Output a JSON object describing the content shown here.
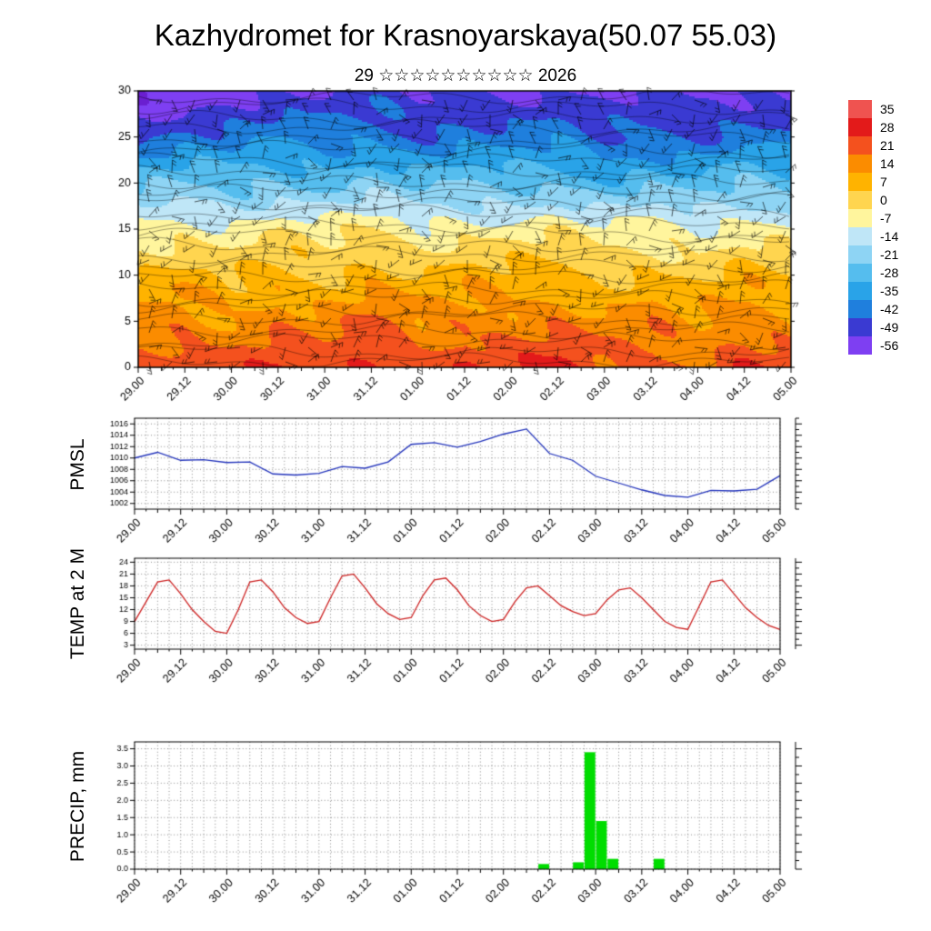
{
  "title": "Kazhydromet for Krasnoyarskaya(50.07 55.03)",
  "subtitle": "29 ☆☆☆☆☆☆☆☆☆☆ 2026",
  "panel_labels": {
    "pmsl": "PMSL",
    "temp": "TEMP at 2 M",
    "precip": "PRECIP, mm"
  },
  "time_axis": {
    "labels": [
      "29.00",
      "29.12",
      "30.00",
      "30.12",
      "31.00",
      "31.12",
      "01.00",
      "01.12",
      "02.00",
      "02.12",
      "03.00",
      "03.12",
      "04.00",
      "04.12",
      "05.00"
    ],
    "label_step_hours": 12,
    "minor_step_hours": 3,
    "total_hours": 168
  },
  "colorbar": {
    "labels": [
      "35",
      "28",
      "21",
      "14",
      "7",
      "0",
      "-7",
      "-14",
      "-21",
      "-28",
      "-35",
      "-42",
      "-49",
      "-56"
    ],
    "levels": [
      35,
      28,
      21,
      14,
      7,
      0,
      -7,
      -14,
      -21,
      -28,
      -35,
      -42,
      -49,
      -56
    ],
    "colors": [
      "#ef5350",
      "#e31a1a",
      "#f4511e",
      "#fb8c00",
      "#ffb300",
      "#ffd54f",
      "#fff59d",
      "#bfe6f7",
      "#8ed4f4",
      "#55bdee",
      "#29a3e8",
      "#1f7fdd",
      "#3a3ad2",
      "#7e3ff2"
    ],
    "below_color": "#6a1fd0"
  },
  "chart_data": [
    {
      "type": "heatmap",
      "name": "temperature-height-cross-section",
      "title": "",
      "ylabel": "",
      "y_ticks": [
        0,
        5,
        10,
        15,
        20,
        25,
        30
      ],
      "y_range": [
        0,
        30
      ],
      "overlay": "wind-barbs-and-streamlines",
      "grid": {
        "heights": [
          0,
          5,
          10,
          15,
          20,
          25,
          30
        ],
        "time_cols": [
          "29.00",
          "29.12",
          "30.00",
          "30.12",
          "31.00",
          "31.12",
          "01.00",
          "01.12",
          "02.00",
          "02.12",
          "03.00",
          "03.12",
          "04.00",
          "04.12",
          "05.00"
        ],
        "values": [
          [
            24,
            27,
            23,
            28,
            24,
            30,
            24,
            28,
            26,
            29,
            23,
            26,
            22,
            28,
            24
          ],
          [
            16,
            19,
            15,
            20,
            16,
            22,
            16,
            20,
            18,
            20,
            15,
            18,
            14,
            20,
            16
          ],
          [
            7,
            10,
            6,
            11,
            7,
            12,
            7,
            10,
            9,
            11,
            6,
            9,
            5,
            10,
            7
          ],
          [
            -4,
            -2,
            -5,
            -1,
            -4,
            0,
            -4,
            -2,
            -3,
            -1,
            -6,
            -3,
            -6,
            -2,
            -4
          ],
          [
            -24,
            -21,
            -23,
            -20,
            -23,
            -19,
            -24,
            -22,
            -23,
            -21,
            -26,
            -23,
            -26,
            -21,
            -24
          ],
          [
            -42,
            -39,
            -40,
            -37,
            -40,
            -36,
            -41,
            -38,
            -40,
            -38,
            -43,
            -40,
            -42,
            -38,
            -40
          ],
          [
            -58,
            -55,
            -50,
            -48,
            -50,
            -47,
            -50,
            -48,
            -50,
            -48,
            -52,
            -49,
            -51,
            -48,
            -50
          ]
        ]
      }
    },
    {
      "type": "line",
      "name": "PMSL",
      "line_color": "#2233bb",
      "y_ticks": [
        1002,
        1004,
        1006,
        1008,
        1010,
        1012,
        1014,
        1016
      ],
      "y_range": [
        1001,
        1017
      ],
      "step_hours": 6,
      "values": [
        1010.0,
        1011.0,
        1009.6,
        1009.7,
        1009.2,
        1009.3,
        1007.2,
        1007.0,
        1007.3,
        1008.5,
        1008.2,
        1009.3,
        1012.4,
        1012.7,
        1011.9,
        1012.9,
        1014.2,
        1015.1,
        1010.8,
        1009.6,
        1006.8,
        1005.6,
        1004.4,
        1003.4,
        1003.1,
        1004.3,
        1004.2,
        1004.5,
        1006.9
      ]
    },
    {
      "type": "line",
      "name": "TEMP at 2 M",
      "line_color": "#cc2020",
      "y_ticks": [
        3,
        6,
        9,
        12,
        15,
        18,
        21,
        24
      ],
      "y_range": [
        2,
        25
      ],
      "step_hours": 3,
      "values": [
        9.0,
        14.0,
        19.0,
        19.5,
        16.0,
        12.0,
        9.0,
        6.5,
        6.0,
        12.0,
        19.0,
        19.5,
        16.5,
        12.5,
        10.0,
        8.5,
        9.0,
        15.0,
        20.5,
        21.0,
        17.5,
        13.5,
        11.0,
        9.5,
        10.0,
        15.5,
        19.5,
        20.0,
        17.0,
        13.0,
        10.5,
        9.0,
        9.5,
        14.0,
        17.5,
        18.0,
        15.5,
        13.0,
        11.5,
        10.5,
        11.0,
        14.5,
        17.0,
        17.5,
        15.0,
        12.0,
        9.0,
        7.5,
        7.0,
        13.0,
        19.0,
        19.5,
        16.0,
        12.5,
        10.0,
        8.0,
        7.0
      ]
    },
    {
      "type": "bar",
      "name": "PRECIP, mm",
      "bar_color": "#00dd00",
      "y_ticks": [
        0,
        0.5,
        1,
        1.5,
        2,
        2.5,
        3,
        3.5
      ],
      "y_decimals": 1,
      "y_range": [
        0,
        3.7
      ],
      "step_hours": 3,
      "values": [
        0,
        0,
        0,
        0,
        0,
        0,
        0,
        0,
        0,
        0,
        0,
        0,
        0,
        0,
        0,
        0,
        0,
        0,
        0,
        0,
        0,
        0,
        0,
        0,
        0,
        0,
        0,
        0,
        0,
        0,
        0,
        0,
        0,
        0,
        0,
        0.15,
        0,
        0,
        0.2,
        3.4,
        1.4,
        0.3,
        0,
        0,
        0,
        0.3,
        0,
        0,
        0,
        0,
        0,
        0,
        0,
        0,
        0,
        0
      ]
    }
  ]
}
